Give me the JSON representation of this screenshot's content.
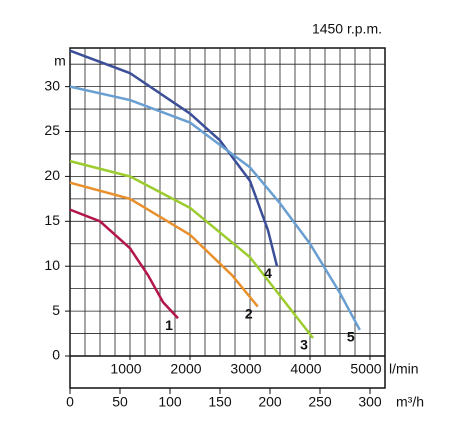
{
  "chart_data": {
    "type": "line",
    "title": "1450 r.p.m.",
    "y_label": "m",
    "x_label": "l/min",
    "x2_label": "m³/h",
    "xlim": [
      0,
      5250
    ],
    "xticks": [
      1000,
      2000,
      3000,
      4000,
      5000
    ],
    "x2lim": [
      0,
      315
    ],
    "x2ticks": [
      0,
      50,
      100,
      150,
      200,
      250,
      300
    ],
    "ylim": [
      0,
      34.3
    ],
    "yticks": [
      0,
      5,
      10,
      15,
      20,
      25,
      30
    ],
    "grid": true,
    "xgrid": [
      0,
      250,
      500,
      750,
      1000,
      1250,
      1500,
      1750,
      2000,
      2250,
      2500,
      2750,
      3000,
      3250,
      3500,
      3750,
      4000,
      4250,
      4500,
      4750,
      5000
    ],
    "ygrid": [
      0,
      2.5,
      5,
      7.5,
      10,
      12.5,
      15,
      17.5,
      20,
      22.5,
      25,
      27.5,
      30,
      32.5
    ],
    "series": [
      {
        "name": "1",
        "color": "#b3164b",
        "x": [
          0,
          500,
          1000,
          1300,
          1550,
          1800
        ],
        "values": [
          16.3,
          15,
          12,
          9,
          6,
          4.2
        ]
      },
      {
        "name": "2",
        "color": "#e8902c",
        "x": [
          0,
          1000,
          2000,
          2700,
          3130
        ],
        "values": [
          19.3,
          17.5,
          13.5,
          9,
          5.5
        ]
      },
      {
        "name": "3",
        "color": "#9ccc2e",
        "x": [
          0,
          1000,
          2000,
          3000,
          3700,
          4050
        ],
        "values": [
          21.7,
          20,
          16.5,
          11,
          5,
          2
        ]
      },
      {
        "name": "4",
        "color": "#3b4f98",
        "x": [
          0,
          1000,
          2000,
          2500,
          3000,
          3300,
          3450
        ],
        "values": [
          34,
          31.5,
          27,
          24,
          19.5,
          14,
          10
        ]
      },
      {
        "name": "5",
        "color": "#6a9fd2",
        "x": [
          0,
          1000,
          2000,
          3000,
          3500,
          4000,
          4500,
          4830
        ],
        "values": [
          30,
          28.5,
          26,
          21,
          17,
          12.5,
          7,
          2.9
        ]
      }
    ]
  }
}
